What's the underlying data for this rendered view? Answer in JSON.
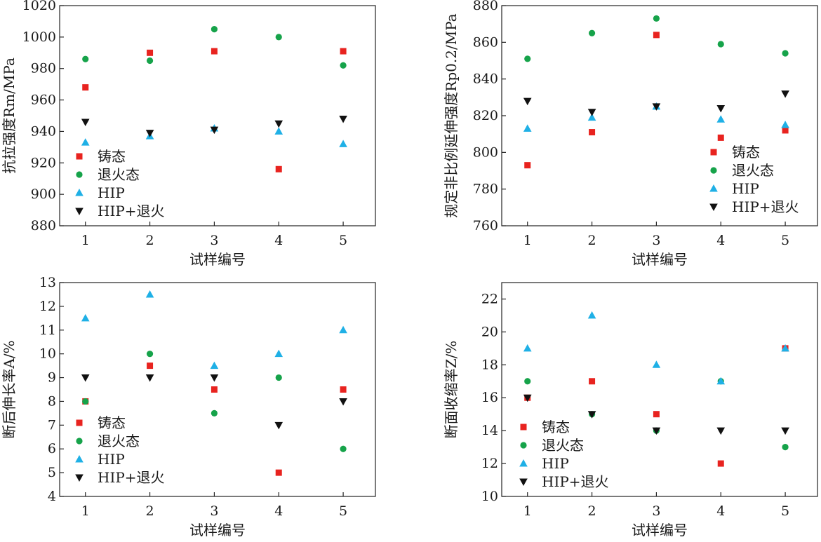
{
  "figure": {
    "series_styles": [
      {
        "name": "铸态",
        "color": "#e8231f",
        "marker": "square"
      },
      {
        "name": "退火态",
        "color": "#16a34a",
        "marker": "circle"
      },
      {
        "name": "HIP",
        "color": "#1fb0e6",
        "marker": "triangle-up"
      },
      {
        "name": "HIP+退火",
        "color": "#111111",
        "marker": "triangle-down"
      }
    ]
  },
  "chart_data": [
    {
      "type": "scatter",
      "title": "",
      "xlabel": "试样编号",
      "ylabel": "抗拉强度Rm/MPa",
      "x": [
        1,
        2,
        3,
        4,
        5
      ],
      "xticks": [
        "1",
        "2",
        "3",
        "4",
        "5"
      ],
      "xlim": [
        0.6,
        5.5
      ],
      "ylim": [
        880,
        1020
      ],
      "yticks": [
        880,
        900,
        920,
        940,
        960,
        980,
        1000,
        1020
      ],
      "legend_position": "lower-left",
      "series": [
        {
          "name": "铸态",
          "values": [
            968,
            990,
            991,
            916,
            991
          ]
        },
        {
          "name": "退火态",
          "values": [
            986,
            985,
            1005,
            1000,
            982
          ]
        },
        {
          "name": "HIP",
          "values": [
            933,
            937,
            942,
            940,
            932
          ]
        },
        {
          "name": "HIP+退火",
          "values": [
            946,
            939,
            941,
            945,
            948
          ]
        }
      ]
    },
    {
      "type": "scatter",
      "title": "",
      "xlabel": "试样编号",
      "ylabel": "规定非比例延伸强度Rp0.2/MPa",
      "x": [
        1,
        2,
        3,
        4,
        5
      ],
      "xticks": [
        "1",
        "2",
        "3",
        "4",
        "5"
      ],
      "xlim": [
        0.6,
        5.5
      ],
      "ylim": [
        760,
        880
      ],
      "yticks": [
        760,
        780,
        800,
        820,
        840,
        860,
        880
      ],
      "legend_position": "lower-right",
      "series": [
        {
          "name": "铸态",
          "values": [
            793,
            811,
            864,
            808,
            812
          ]
        },
        {
          "name": "退火态",
          "values": [
            851,
            865,
            873,
            859,
            854
          ]
        },
        {
          "name": "HIP",
          "values": [
            813,
            819,
            825,
            818,
            815
          ]
        },
        {
          "name": "HIP+退火",
          "values": [
            828,
            822,
            825,
            824,
            832
          ]
        }
      ]
    },
    {
      "type": "scatter",
      "title": "",
      "xlabel": "试样编号",
      "ylabel": "断后伸长率A/%",
      "x": [
        1,
        2,
        3,
        4,
        5
      ],
      "xticks": [
        "1",
        "2",
        "3",
        "4",
        "5"
      ],
      "xlim": [
        0.6,
        5.5
      ],
      "ylim": [
        4,
        13
      ],
      "yticks": [
        4,
        5,
        6,
        7,
        8,
        9,
        10,
        11,
        12,
        13
      ],
      "legend_position": "lower-left",
      "series": [
        {
          "name": "铸态",
          "values": [
            8.0,
            9.5,
            8.5,
            5.0,
            8.5
          ]
        },
        {
          "name": "退火态",
          "values": [
            8.0,
            10.0,
            7.5,
            9.0,
            6.0
          ]
        },
        {
          "name": "HIP",
          "values": [
            11.5,
            12.5,
            9.5,
            10.0,
            11.0
          ]
        },
        {
          "name": "HIP+退火",
          "values": [
            9.0,
            9.0,
            9.0,
            7.0,
            8.0
          ]
        }
      ]
    },
    {
      "type": "scatter",
      "title": "",
      "xlabel": "试样编号",
      "ylabel": "断面收缩率Z/%",
      "x": [
        1,
        2,
        3,
        4,
        5
      ],
      "xticks": [
        "1",
        "2",
        "3",
        "4",
        "5"
      ],
      "xlim": [
        0.6,
        5.5
      ],
      "ylim": [
        10,
        23
      ],
      "yticks": [
        10,
        12,
        14,
        16,
        18,
        20,
        22
      ],
      "legend_position": "lower-left",
      "series": [
        {
          "name": "铸态",
          "values": [
            16,
            17,
            15,
            12,
            19
          ]
        },
        {
          "name": "退火态",
          "values": [
            17,
            15,
            14,
            17,
            13
          ]
        },
        {
          "name": "HIP",
          "values": [
            19,
            21,
            18,
            17,
            19
          ]
        },
        {
          "name": "HIP+退火",
          "values": [
            16,
            15,
            14,
            14,
            14
          ]
        }
      ]
    }
  ]
}
